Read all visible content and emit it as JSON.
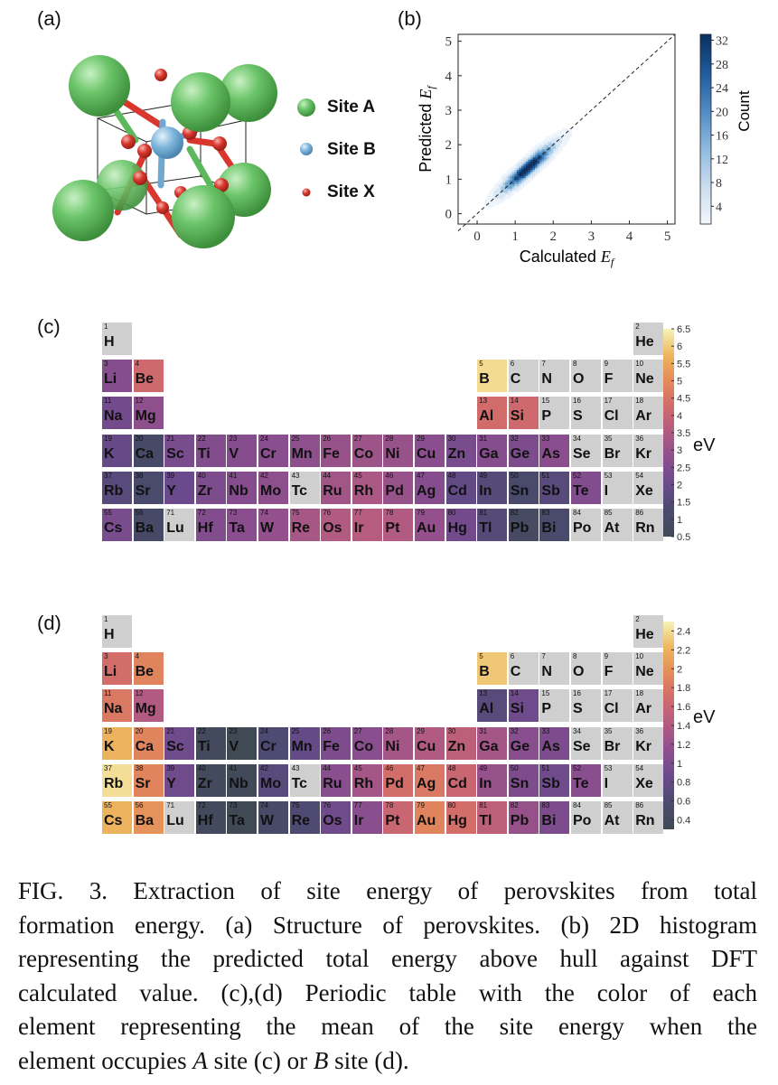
{
  "panels": {
    "a": {
      "label": "(a)",
      "legend": [
        {
          "label": "Site A",
          "color": "#5cb85c"
        },
        {
          "label": "Site B",
          "color": "#6fa8d0"
        },
        {
          "label": "Site X",
          "color": "#d9372e"
        }
      ]
    },
    "b": {
      "label": "(b)"
    },
    "c": {
      "label": "(c)",
      "unit": "eV"
    },
    "d": {
      "label": "(d)",
      "unit": "eV"
    }
  },
  "chart_data": [
    {
      "type": "heatmap",
      "panel": "b",
      "xlabel": "Calculated E_f",
      "ylabel": "Predicted E_f",
      "xlim": [
        -0.5,
        5.2
      ],
      "ylim": [
        -0.3,
        5.2
      ],
      "xticks": [
        "0",
        "1",
        "2",
        "3",
        "4",
        "5"
      ],
      "yticks": [
        "0",
        "1",
        "2",
        "3",
        "4",
        "5"
      ],
      "colorbar": {
        "label": "Count",
        "ticks": [
          "4",
          "8",
          "12",
          "16",
          "20",
          "24",
          "28",
          "32"
        ],
        "range": [
          1,
          33
        ]
      },
      "reference_line": "y = x (dashed)",
      "density_center": [
        1.3,
        1.3
      ]
    },
    {
      "type": "heatmap",
      "panel": "c",
      "description_source": "periodic table colored by mean A-site energy",
      "colorbar": {
        "unit": "eV",
        "ticks": [
          "6.5",
          "6",
          "5.5",
          "5",
          "4.5",
          "4",
          "3.5",
          "3",
          "2.5",
          "2",
          "1.5",
          "1",
          "0.5"
        ],
        "range": [
          0.5,
          6.5
        ]
      },
      "elements": [
        {
          "z": "1",
          "sym": "H",
          "v": null
        },
        {
          "z": "2",
          "sym": "He",
          "v": null
        },
        {
          "z": "3",
          "sym": "Li",
          "v": 2.6
        },
        {
          "z": "4",
          "sym": "Be",
          "v": 4.2
        },
        {
          "z": "5",
          "sym": "B",
          "v": 6.2
        },
        {
          "z": "6",
          "sym": "C",
          "v": null
        },
        {
          "z": "7",
          "sym": "N",
          "v": null
        },
        {
          "z": "8",
          "sym": "O",
          "v": null
        },
        {
          "z": "9",
          "sym": "F",
          "v": null
        },
        {
          "z": "10",
          "sym": "Ne",
          "v": null
        },
        {
          "z": "11",
          "sym": "Na",
          "v": 2.2
        },
        {
          "z": "12",
          "sym": "Mg",
          "v": 2.8
        },
        {
          "z": "13",
          "sym": "Al",
          "v": 4.3
        },
        {
          "z": "14",
          "sym": "Si",
          "v": 4.2
        },
        {
          "z": "15",
          "sym": "P",
          "v": null
        },
        {
          "z": "16",
          "sym": "S",
          "v": null
        },
        {
          "z": "17",
          "sym": "Cl",
          "v": null
        },
        {
          "z": "18",
          "sym": "Ar",
          "v": null
        },
        {
          "z": "19",
          "sym": "K",
          "v": 1.9
        },
        {
          "z": "20",
          "sym": "Ca",
          "v": 1.0
        },
        {
          "z": "21",
          "sym": "Sc",
          "v": 2.3
        },
        {
          "z": "22",
          "sym": "Ti",
          "v": 2.5
        },
        {
          "z": "23",
          "sym": "V",
          "v": 2.6
        },
        {
          "z": "24",
          "sym": "Cr",
          "v": 2.7
        },
        {
          "z": "25",
          "sym": "Mn",
          "v": 2.8
        },
        {
          "z": "26",
          "sym": "Fe",
          "v": 3.0
        },
        {
          "z": "27",
          "sym": "Co",
          "v": 3.1
        },
        {
          "z": "28",
          "sym": "Ni",
          "v": 3.0
        },
        {
          "z": "29",
          "sym": "Cu",
          "v": 2.7
        },
        {
          "z": "30",
          "sym": "Zn",
          "v": 2.3
        },
        {
          "z": "31",
          "sym": "Ga",
          "v": 2.6
        },
        {
          "z": "32",
          "sym": "Ge",
          "v": 2.4
        },
        {
          "z": "33",
          "sym": "As",
          "v": 2.7
        },
        {
          "z": "34",
          "sym": "Se",
          "v": null
        },
        {
          "z": "35",
          "sym": "Br",
          "v": null
        },
        {
          "z": "36",
          "sym": "Kr",
          "v": null
        },
        {
          "z": "37",
          "sym": "Rb",
          "v": 1.6
        },
        {
          "z": "38",
          "sym": "Sr",
          "v": 1.2
        },
        {
          "z": "39",
          "sym": "Y",
          "v": 2.0
        },
        {
          "z": "40",
          "sym": "Zr",
          "v": 2.4
        },
        {
          "z": "41",
          "sym": "Nb",
          "v": 2.6
        },
        {
          "z": "42",
          "sym": "Mo",
          "v": 2.8
        },
        {
          "z": "43",
          "sym": "Tc",
          "v": null
        },
        {
          "z": "44",
          "sym": "Ru",
          "v": 3.2
        },
        {
          "z": "45",
          "sym": "Rh",
          "v": 3.4
        },
        {
          "z": "46",
          "sym": "Pd",
          "v": 3.0
        },
        {
          "z": "47",
          "sym": "Ag",
          "v": 2.6
        },
        {
          "z": "48",
          "sym": "Cd",
          "v": 1.8
        },
        {
          "z": "49",
          "sym": "In",
          "v": 1.5
        },
        {
          "z": "50",
          "sym": "Sn",
          "v": 1.2
        },
        {
          "z": "51",
          "sym": "Sb",
          "v": 1.6
        },
        {
          "z": "52",
          "sym": "Te",
          "v": 2.5
        },
        {
          "z": "53",
          "sym": "I",
          "v": null
        },
        {
          "z": "54",
          "sym": "Xe",
          "v": null
        },
        {
          "z": "55",
          "sym": "Cs",
          "v": 2.3
        },
        {
          "z": "56",
          "sym": "Ba",
          "v": 1.0
        },
        {
          "z": "71",
          "sym": "Lu",
          "v": null
        },
        {
          "z": "72",
          "sym": "Hf",
          "v": 2.5
        },
        {
          "z": "73",
          "sym": "Ta",
          "v": 2.7
        },
        {
          "z": "74",
          "sym": "W",
          "v": 2.9
        },
        {
          "z": "75",
          "sym": "Re",
          "v": 3.3
        },
        {
          "z": "76",
          "sym": "Os",
          "v": 3.5
        },
        {
          "z": "77",
          "sym": "Ir",
          "v": 3.6
        },
        {
          "z": "78",
          "sym": "Pt",
          "v": 3.5
        },
        {
          "z": "79",
          "sym": "Au",
          "v": 2.9
        },
        {
          "z": "80",
          "sym": "Hg",
          "v": 2.2
        },
        {
          "z": "81",
          "sym": "Tl",
          "v": 1.5
        },
        {
          "z": "82",
          "sym": "Pb",
          "v": 0.9
        },
        {
          "z": "83",
          "sym": "Bi",
          "v": 1.2
        },
        {
          "z": "84",
          "sym": "Po",
          "v": null
        },
        {
          "z": "85",
          "sym": "At",
          "v": null
        },
        {
          "z": "86",
          "sym": "Rn",
          "v": null
        }
      ]
    },
    {
      "type": "heatmap",
      "panel": "d",
      "description_source": "periodic table colored by mean B-site energy",
      "colorbar": {
        "unit": "eV",
        "ticks": [
          "2.4",
          "2.2",
          "2",
          "1.8",
          "1.6",
          "1.4",
          "1.2",
          "1",
          "0.8",
          "0.6",
          "0.4"
        ],
        "range": [
          0.3,
          2.5
        ]
      },
      "elements": [
        {
          "z": "1",
          "sym": "H",
          "v": null
        },
        {
          "z": "2",
          "sym": "He",
          "v": null
        },
        {
          "z": "3",
          "sym": "Li",
          "v": 1.7
        },
        {
          "z": "4",
          "sym": "Be",
          "v": 1.9
        },
        {
          "z": "5",
          "sym": "B",
          "v": 2.3
        },
        {
          "z": "6",
          "sym": "C",
          "v": null
        },
        {
          "z": "7",
          "sym": "N",
          "v": null
        },
        {
          "z": "8",
          "sym": "O",
          "v": null
        },
        {
          "z": "9",
          "sym": "F",
          "v": null
        },
        {
          "z": "10",
          "sym": "Ne",
          "v": null
        },
        {
          "z": "11",
          "sym": "Na",
          "v": 1.8
        },
        {
          "z": "12",
          "sym": "Mg",
          "v": 1.4
        },
        {
          "z": "13",
          "sym": "Al",
          "v": 0.7
        },
        {
          "z": "14",
          "sym": "Si",
          "v": 0.9
        },
        {
          "z": "15",
          "sym": "P",
          "v": null
        },
        {
          "z": "16",
          "sym": "S",
          "v": null
        },
        {
          "z": "17",
          "sym": "Cl",
          "v": null
        },
        {
          "z": "18",
          "sym": "Ar",
          "v": null
        },
        {
          "z": "19",
          "sym": "K",
          "v": 2.2
        },
        {
          "z": "20",
          "sym": "Ca",
          "v": 1.9
        },
        {
          "z": "21",
          "sym": "Sc",
          "v": 0.9
        },
        {
          "z": "22",
          "sym": "Ti",
          "v": 0.4
        },
        {
          "z": "23",
          "sym": "V",
          "v": 0.3
        },
        {
          "z": "24",
          "sym": "Cr",
          "v": 0.6
        },
        {
          "z": "25",
          "sym": "Mn",
          "v": 0.8
        },
        {
          "z": "26",
          "sym": "Fe",
          "v": 1.0
        },
        {
          "z": "27",
          "sym": "Co",
          "v": 1.1
        },
        {
          "z": "28",
          "sym": "Ni",
          "v": 1.3
        },
        {
          "z": "29",
          "sym": "Cu",
          "v": 1.4
        },
        {
          "z": "30",
          "sym": "Zn",
          "v": 1.5
        },
        {
          "z": "31",
          "sym": "Ga",
          "v": 1.3
        },
        {
          "z": "32",
          "sym": "Ge",
          "v": 1.1
        },
        {
          "z": "33",
          "sym": "As",
          "v": 1.0
        },
        {
          "z": "34",
          "sym": "Se",
          "v": null
        },
        {
          "z": "35",
          "sym": "Br",
          "v": null
        },
        {
          "z": "36",
          "sym": "Kr",
          "v": null
        },
        {
          "z": "37",
          "sym": "Rb",
          "v": 2.4
        },
        {
          "z": "38",
          "sym": "Sr",
          "v": 1.9
        },
        {
          "z": "39",
          "sym": "Y",
          "v": 0.9
        },
        {
          "z": "40",
          "sym": "Zr",
          "v": 0.4
        },
        {
          "z": "41",
          "sym": "Nb",
          "v": 0.35
        },
        {
          "z": "42",
          "sym": "Mo",
          "v": 0.7
        },
        {
          "z": "43",
          "sym": "Tc",
          "v": null
        },
        {
          "z": "44",
          "sym": "Ru",
          "v": 1.1
        },
        {
          "z": "45",
          "sym": "Rh",
          "v": 1.3
        },
        {
          "z": "46",
          "sym": "Pd",
          "v": 1.7
        },
        {
          "z": "47",
          "sym": "Ag",
          "v": 1.8
        },
        {
          "z": "48",
          "sym": "Cd",
          "v": 1.6
        },
        {
          "z": "49",
          "sym": "In",
          "v": 1.2
        },
        {
          "z": "50",
          "sym": "Sn",
          "v": 1.0
        },
        {
          "z": "51",
          "sym": "Sb",
          "v": 0.9
        },
        {
          "z": "52",
          "sym": "Te",
          "v": 1.1
        },
        {
          "z": "53",
          "sym": "I",
          "v": null
        },
        {
          "z": "54",
          "sym": "Xe",
          "v": null
        },
        {
          "z": "55",
          "sym": "Cs",
          "v": 2.2
        },
        {
          "z": "56",
          "sym": "Ba",
          "v": 2.0
        },
        {
          "z": "71",
          "sym": "Lu",
          "v": null
        },
        {
          "z": "72",
          "sym": "Hf",
          "v": 0.4
        },
        {
          "z": "73",
          "sym": "Ta",
          "v": 0.3
        },
        {
          "z": "74",
          "sym": "W",
          "v": 0.5
        },
        {
          "z": "75",
          "sym": "Re",
          "v": 0.6
        },
        {
          "z": "76",
          "sym": "Os",
          "v": 0.9
        },
        {
          "z": "77",
          "sym": "Ir",
          "v": 1.1
        },
        {
          "z": "78",
          "sym": "Pt",
          "v": 1.6
        },
        {
          "z": "79",
          "sym": "Au",
          "v": 1.9
        },
        {
          "z": "80",
          "sym": "Hg",
          "v": 1.7
        },
        {
          "z": "81",
          "sym": "Tl",
          "v": 1.5
        },
        {
          "z": "82",
          "sym": "Pb",
          "v": 1.2
        },
        {
          "z": "83",
          "sym": "Bi",
          "v": 1.0
        },
        {
          "z": "84",
          "sym": "Po",
          "v": null
        },
        {
          "z": "85",
          "sym": "At",
          "v": null
        },
        {
          "z": "86",
          "sym": "Rn",
          "v": null
        }
      ]
    }
  ],
  "caption": {
    "lines": [
      "FIG. 3.   Extraction of site energy of perovskites from total",
      "formation energy. (a) Structure of perovskites. (b) 2D histogram",
      "representing the predicted total energy above hull against DFT",
      "calculated value. (c),(d) Periodic table with the color of each",
      "element representing the mean of the site energy when the"
    ],
    "last_line": {
      "pre": "element occupies ",
      "a": "A",
      "mid": " site (c) or ",
      "b": "B",
      "post": " site (d)."
    }
  },
  "colors": {
    "missing": "#cfcfcf",
    "colormap": [
      "#404a55",
      "#4b4a6e",
      "#6a4a8c",
      "#8c4e8e",
      "#b15a82",
      "#d06a6c",
      "#e48a5a",
      "#eeb65e",
      "#f6f3b8"
    ]
  }
}
